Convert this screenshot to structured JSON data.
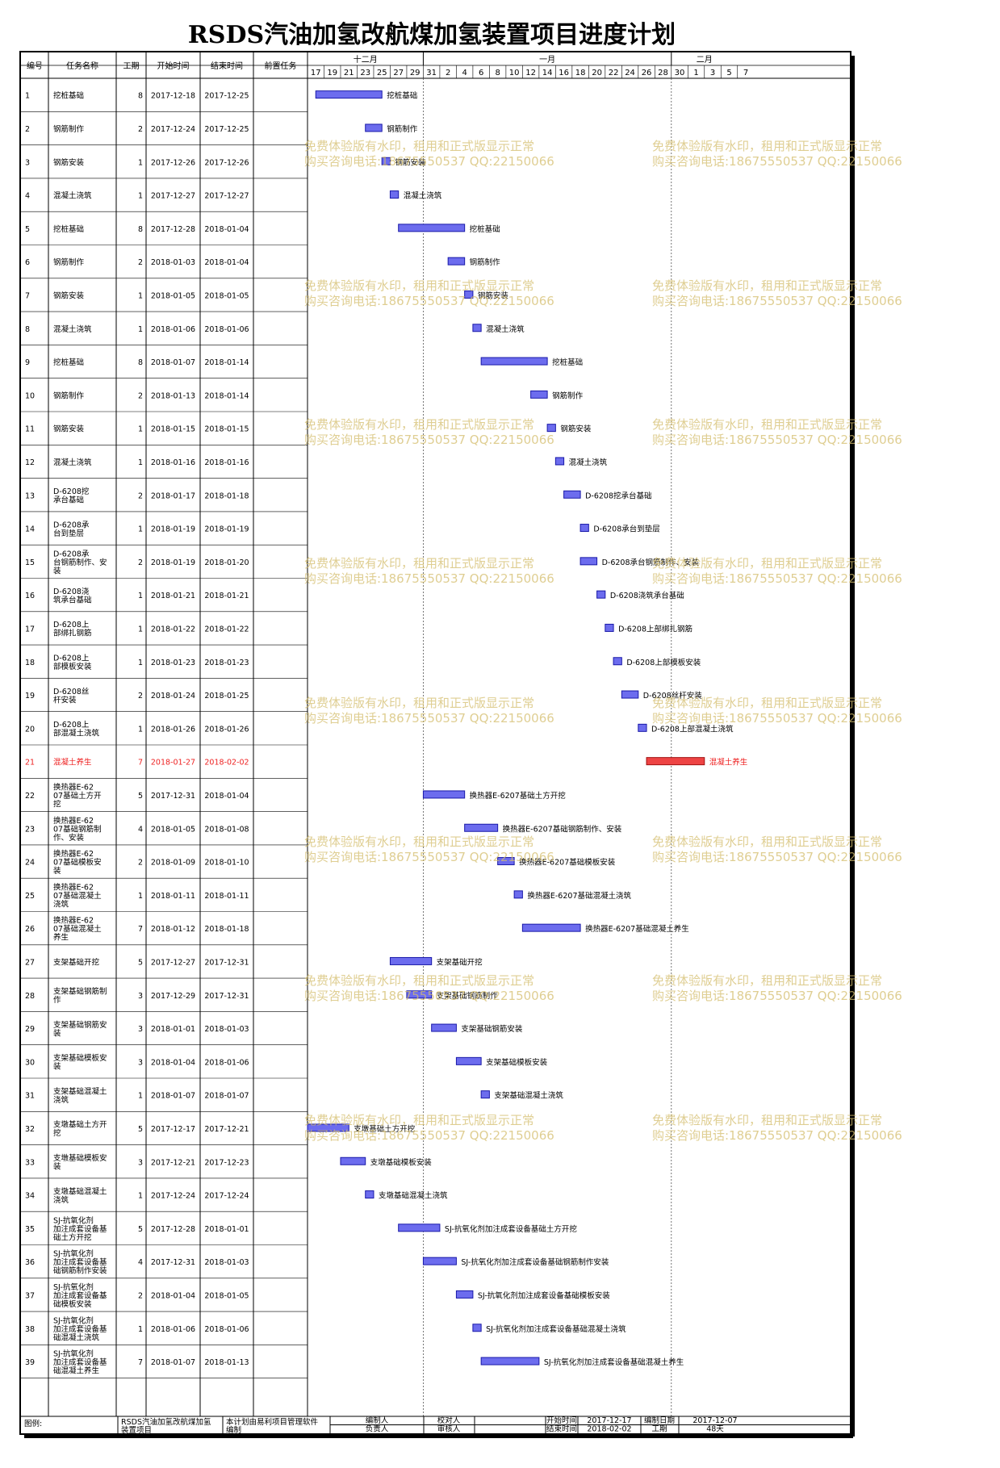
{
  "title": "RSDS汽油加氢改航煤加氢装置项目进度计划",
  "columns": [
    "编号",
    "任务名称",
    "工期",
    "开始时间",
    "结束时间",
    "前置任务"
  ],
  "months": [
    {
      "label": "十二月",
      "start": "2017-12-17",
      "end": "2017-12-31"
    },
    {
      "label": "一月",
      "start": "2017-12-31",
      "end": "2018-01-30"
    },
    {
      "label": "二月",
      "start": "2018-01-30",
      "end": "2018-02-07"
    }
  ],
  "day_ticks": [
    "17",
    "19",
    "21",
    "23",
    "25",
    "27",
    "29",
    "31",
    "2",
    "4",
    "6",
    "8",
    "10",
    "12",
    "14",
    "16",
    "18",
    "20",
    "22",
    "24",
    "26",
    "28",
    "30",
    "1",
    "3",
    "5",
    "7"
  ],
  "colors": {
    "bar": "#6c6cee",
    "bar_edge": "#1a1aa8",
    "critical_bar": "#ee4444",
    "critical_text": "#ee2222",
    "watermark": "#d4be6e"
  },
  "watermark": {
    "line1": "免费体验版有水印，租用和正式版显示正常",
    "line2": "购买咨询电话:18675550537 QQ:22150066"
  },
  "chart_data": {
    "type": "gantt",
    "x_range": [
      "2017-12-17",
      "2018-02-07"
    ],
    "tasks": [
      {
        "id": "1",
        "name": "挖桩基础",
        "duration": 8,
        "start": "2017-12-18",
        "end": "2017-12-25",
        "predecessor": ""
      },
      {
        "id": "2",
        "name": "钢筋制作",
        "duration": 2,
        "start": "2017-12-24",
        "end": "2017-12-25",
        "predecessor": ""
      },
      {
        "id": "3",
        "name": "钢筋安装",
        "duration": 1,
        "start": "2017-12-26",
        "end": "2017-12-26",
        "predecessor": ""
      },
      {
        "id": "4",
        "name": "混凝土浇筑",
        "duration": 1,
        "start": "2017-12-27",
        "end": "2017-12-27",
        "predecessor": ""
      },
      {
        "id": "5",
        "name": "挖桩基础",
        "duration": 8,
        "start": "2017-12-28",
        "end": "2018-01-04",
        "predecessor": ""
      },
      {
        "id": "6",
        "name": "钢筋制作",
        "duration": 2,
        "start": "2018-01-03",
        "end": "2018-01-04",
        "predecessor": ""
      },
      {
        "id": "7",
        "name": "钢筋安装",
        "duration": 1,
        "start": "2018-01-05",
        "end": "2018-01-05",
        "predecessor": ""
      },
      {
        "id": "8",
        "name": "混凝土浇筑",
        "duration": 1,
        "start": "2018-01-06",
        "end": "2018-01-06",
        "predecessor": ""
      },
      {
        "id": "9",
        "name": "挖桩基础",
        "duration": 8,
        "start": "2018-01-07",
        "end": "2018-01-14",
        "predecessor": ""
      },
      {
        "id": "10",
        "name": "钢筋制作",
        "duration": 2,
        "start": "2018-01-13",
        "end": "2018-01-14",
        "predecessor": ""
      },
      {
        "id": "11",
        "name": "钢筋安装",
        "duration": 1,
        "start": "2018-01-15",
        "end": "2018-01-15",
        "predecessor": ""
      },
      {
        "id": "12",
        "name": "混凝土浇筑",
        "duration": 1,
        "start": "2018-01-16",
        "end": "2018-01-16",
        "predecessor": ""
      },
      {
        "id": "13",
        "name": "D-6208挖承台基础",
        "duration": 2,
        "start": "2018-01-17",
        "end": "2018-01-18",
        "predecessor": ""
      },
      {
        "id": "14",
        "name": "D-6208承台到垫层",
        "duration": 1,
        "start": "2018-01-19",
        "end": "2018-01-19",
        "predecessor": ""
      },
      {
        "id": "15",
        "name": "D-6208承台钢筋制作、安装",
        "duration": 2,
        "start": "2018-01-19",
        "end": "2018-01-20",
        "predecessor": ""
      },
      {
        "id": "16",
        "name": "D-6208浇筑承台基础",
        "duration": 1,
        "start": "2018-01-21",
        "end": "2018-01-21",
        "predecessor": ""
      },
      {
        "id": "17",
        "name": "D-6208上部绑扎钢筋",
        "duration": 1,
        "start": "2018-01-22",
        "end": "2018-01-22",
        "predecessor": ""
      },
      {
        "id": "18",
        "name": "D-6208上部模板安装",
        "duration": 1,
        "start": "2018-01-23",
        "end": "2018-01-23",
        "predecessor": ""
      },
      {
        "id": "19",
        "name": "D-6208丝杆安装",
        "duration": 2,
        "start": "2018-01-24",
        "end": "2018-01-25",
        "predecessor": ""
      },
      {
        "id": "20",
        "name": "D-6208上部混凝土浇筑",
        "duration": 1,
        "start": "2018-01-26",
        "end": "2018-01-26",
        "predecessor": ""
      },
      {
        "id": "21",
        "name": "混凝土养生",
        "duration": 7,
        "start": "2018-01-27",
        "end": "2018-02-02",
        "predecessor": "",
        "critical": true
      },
      {
        "id": "22",
        "name": "换热器E-6207基础土方开挖",
        "duration": 5,
        "start": "2017-12-31",
        "end": "2018-01-04",
        "predecessor": ""
      },
      {
        "id": "23",
        "name": "换热器E-6207基础钢筋制作、安装",
        "duration": 4,
        "start": "2018-01-05",
        "end": "2018-01-08",
        "predecessor": ""
      },
      {
        "id": "24",
        "name": "换热器E-6207基础模板安装",
        "duration": 2,
        "start": "2018-01-09",
        "end": "2018-01-10",
        "predecessor": ""
      },
      {
        "id": "25",
        "name": "换热器E-6207基础混凝土浇筑",
        "duration": 1,
        "start": "2018-01-11",
        "end": "2018-01-11",
        "predecessor": ""
      },
      {
        "id": "26",
        "name": "换热器E-6207基础混凝土养生",
        "duration": 7,
        "start": "2018-01-12",
        "end": "2018-01-18",
        "predecessor": ""
      },
      {
        "id": "27",
        "name": "支架基础开挖",
        "duration": 5,
        "start": "2017-12-27",
        "end": "2017-12-31",
        "predecessor": ""
      },
      {
        "id": "28",
        "name": "支架基础钢筋制作",
        "duration": 3,
        "start": "2017-12-29",
        "end": "2017-12-31",
        "predecessor": ""
      },
      {
        "id": "29",
        "name": "支架基础钢筋安装",
        "duration": 3,
        "start": "2018-01-01",
        "end": "2018-01-03",
        "predecessor": ""
      },
      {
        "id": "30",
        "name": "支架基础模板安装",
        "duration": 3,
        "start": "2018-01-04",
        "end": "2018-01-06",
        "predecessor": ""
      },
      {
        "id": "31",
        "name": "支架基础混凝土浇筑",
        "duration": 1,
        "start": "2018-01-07",
        "end": "2018-01-07",
        "predecessor": ""
      },
      {
        "id": "32",
        "name": "支墩基础土方开挖",
        "duration": 5,
        "start": "2017-12-17",
        "end": "2017-12-21",
        "predecessor": ""
      },
      {
        "id": "33",
        "name": "支墩基础模板安装",
        "duration": 3,
        "start": "2017-12-21",
        "end": "2017-12-23",
        "predecessor": ""
      },
      {
        "id": "34",
        "name": "支墩基础混凝土浇筑",
        "duration": 1,
        "start": "2017-12-24",
        "end": "2017-12-24",
        "predecessor": ""
      },
      {
        "id": "35",
        "name": "SJ-抗氧化剂加注成套设备基础土方开挖",
        "duration": 5,
        "start": "2017-12-28",
        "end": "2018-01-01",
        "predecessor": ""
      },
      {
        "id": "36",
        "name": "SJ-抗氧化剂加注成套设备基础钢筋制作安装",
        "duration": 4,
        "start": "2017-12-31",
        "end": "2018-01-03",
        "predecessor": ""
      },
      {
        "id": "37",
        "name": "SJ-抗氧化剂加注成套设备基础模板安装",
        "duration": 2,
        "start": "2018-01-04",
        "end": "2018-01-05",
        "predecessor": ""
      },
      {
        "id": "38",
        "name": "SJ-抗氧化剂加注成套设备基础混凝土浇筑",
        "duration": 1,
        "start": "2018-01-06",
        "end": "2018-01-06",
        "predecessor": ""
      },
      {
        "id": "39",
        "name": "SJ-抗氧化剂加注成套设备基础混凝土养生",
        "duration": 7,
        "start": "2018-01-07",
        "end": "2018-01-13",
        "predecessor": ""
      }
    ]
  },
  "footer": {
    "legend_label": "图例:",
    "project_name": "RSDS汽油加氢改航煤加氢装置项目",
    "software_note": "本计划由易利项目管理软件编制",
    "compiler_label": "编制人",
    "compiler": "",
    "checker_label": "校对人",
    "checker": "",
    "responsible_label": "负责人",
    "responsible": "",
    "reviewer_label": "审核人",
    "reviewer": "",
    "start_label": "开始时间",
    "start_value": "2017-12-17",
    "compile_date_label": "编制日期",
    "compile_date": "2017-12-07",
    "end_label": "结束时间",
    "end_value": "2018-02-02",
    "duration_label": "工期",
    "duration_value": "48天"
  }
}
